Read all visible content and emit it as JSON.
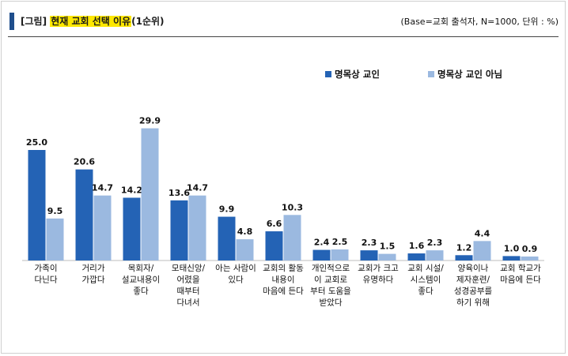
{
  "header": {
    "prefix": "[그림]",
    "title": "현재 교회 선택 이유",
    "suffix": "(1순위)",
    "base_note": "(Base=교회 출석자, N=1000, 단위 : %)"
  },
  "colors": {
    "series1": "#2463b5",
    "series2": "#9bb9e0",
    "accent": "#1f4e8c",
    "highlight": "#ffe800"
  },
  "chart_data": {
    "type": "bar",
    "title": "현재 교회 선택 이유(1순위)",
    "ylabel": "%",
    "ylim": [
      0,
      30
    ],
    "legend_position": "top-right",
    "categories": [
      [
        "가족이",
        "다닌다"
      ],
      [
        "거리가",
        "가깝다"
      ],
      [
        "목회자/",
        "설교내용이",
        "좋다"
      ],
      [
        "모태신앙/",
        "어렸을",
        "때부터",
        "다녀서"
      ],
      [
        "아는 사람이",
        "있다"
      ],
      [
        "교회의 활동",
        "내용이",
        "마음에 든다"
      ],
      [
        "개인적으로",
        "이 교회로",
        "부터 도움을",
        "받았다"
      ],
      [
        "교회가 크고",
        "유명하다"
      ],
      [
        "교회 시설/",
        "시스템이",
        "좋다"
      ],
      [
        "양육이나",
        "제자훈련/",
        "성경공부를",
        "하기 위해"
      ],
      [
        "교회 학교가",
        "마음에 든다"
      ]
    ],
    "series": [
      {
        "name": "명목상 교인",
        "values": [
          25.0,
          20.6,
          14.2,
          13.6,
          9.9,
          6.6,
          2.4,
          2.3,
          1.6,
          1.2,
          1.0
        ]
      },
      {
        "name": "명목상 교인 아님",
        "values": [
          9.5,
          14.7,
          29.9,
          14.7,
          4.8,
          10.3,
          2.5,
          1.5,
          2.3,
          4.4,
          0.9
        ]
      }
    ]
  }
}
